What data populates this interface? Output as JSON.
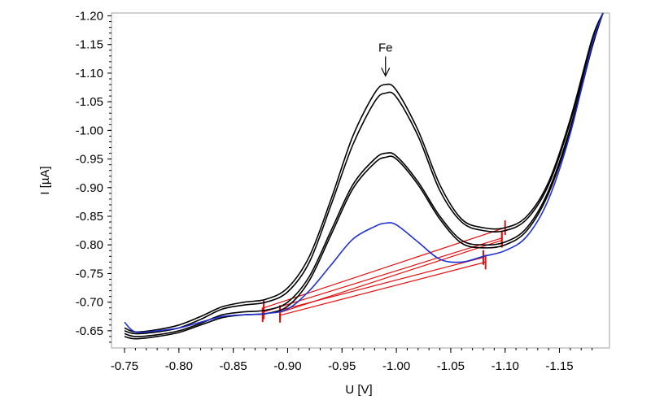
{
  "chart_data": {
    "type": "line",
    "title": "",
    "xlabel": "U [V]",
    "ylabel": "I [µA]",
    "xlim": [
      -0.738,
      -1.196
    ],
    "ylim": [
      -0.62,
      -1.205
    ],
    "x_reversed": true,
    "y_reversed": true,
    "grid": false,
    "legend": "none",
    "x_ticks": [
      -0.75,
      -0.8,
      -0.85,
      -0.9,
      -0.95,
      -1.0,
      -1.05,
      -1.1,
      -1.15
    ],
    "x_tick_labels": [
      "-0.75",
      "-0.80",
      "-0.85",
      "-0.90",
      "-0.95",
      "-1.00",
      "-1.05",
      "-1.10",
      "-1.15"
    ],
    "y_ticks": [
      -0.65,
      -0.7,
      -0.75,
      -0.8,
      -0.85,
      -0.9,
      -0.95,
      -1.0,
      -1.05,
      -1.1,
      -1.15,
      -1.2
    ],
    "y_tick_labels": [
      "-0.65",
      "-0.70",
      "-0.75",
      "-0.80",
      "-0.85",
      "-0.90",
      "-0.95",
      "-1.00",
      "-1.05",
      "-1.10",
      "-1.15",
      "-1.20"
    ],
    "annotations": [
      {
        "text": "Fe",
        "x": -0.99,
        "y": -1.095
      }
    ],
    "series": [
      {
        "color": "#000000",
        "x": [
          -0.75,
          -0.76,
          -0.78,
          -0.8,
          -0.82,
          -0.84,
          -0.86,
          -0.88,
          -0.9,
          -0.92,
          -0.94,
          -0.96,
          -0.98,
          -0.99,
          -1.0,
          -1.02,
          -1.04,
          -1.06,
          -1.08,
          -1.1,
          -1.12,
          -1.14,
          -1.16,
          -1.18,
          -1.19
        ],
        "y": [
          -0.655,
          -0.648,
          -0.652,
          -0.66,
          -0.675,
          -0.692,
          -0.7,
          -0.705,
          -0.725,
          -0.78,
          -0.88,
          -0.99,
          -1.065,
          -1.08,
          -1.07,
          -1.0,
          -0.905,
          -0.845,
          -0.83,
          -0.83,
          -0.85,
          -0.91,
          -1.02,
          -1.16,
          -1.205
        ]
      },
      {
        "color": "#000000",
        "x": [
          -0.75,
          -0.76,
          -0.78,
          -0.8,
          -0.82,
          -0.84,
          -0.86,
          -0.88,
          -0.9,
          -0.92,
          -0.94,
          -0.96,
          -0.98,
          -0.99,
          -1.0,
          -1.02,
          -1.04,
          -1.06,
          -1.08,
          -1.1,
          -1.12,
          -1.14,
          -1.16,
          -1.18,
          -1.19
        ],
        "y": [
          -0.65,
          -0.645,
          -0.648,
          -0.655,
          -0.67,
          -0.688,
          -0.695,
          -0.7,
          -0.718,
          -0.77,
          -0.87,
          -0.975,
          -1.05,
          -1.065,
          -1.058,
          -0.99,
          -0.895,
          -0.84,
          -0.825,
          -0.825,
          -0.845,
          -0.905,
          -1.015,
          -1.155,
          -1.205
        ]
      },
      {
        "color": "#000000",
        "x": [
          -0.75,
          -0.76,
          -0.78,
          -0.8,
          -0.82,
          -0.84,
          -0.86,
          -0.88,
          -0.9,
          -0.92,
          -0.94,
          -0.96,
          -0.98,
          -0.99,
          -1.0,
          -1.02,
          -1.04,
          -1.06,
          -1.08,
          -1.1,
          -1.12,
          -1.14,
          -1.16,
          -1.18,
          -1.19
        ],
        "y": [
          -0.645,
          -0.64,
          -0.643,
          -0.65,
          -0.663,
          -0.678,
          -0.683,
          -0.686,
          -0.7,
          -0.745,
          -0.825,
          -0.905,
          -0.95,
          -0.96,
          -0.955,
          -0.91,
          -0.85,
          -0.808,
          -0.8,
          -0.805,
          -0.83,
          -0.895,
          -1.005,
          -1.15,
          -1.205
        ]
      },
      {
        "color": "#000000",
        "x": [
          -0.75,
          -0.76,
          -0.78,
          -0.8,
          -0.82,
          -0.84,
          -0.86,
          -0.88,
          -0.9,
          -0.92,
          -0.94,
          -0.96,
          -0.98,
          -0.99,
          -1.0,
          -1.02,
          -1.04,
          -1.06,
          -1.08,
          -1.1,
          -1.12,
          -1.14,
          -1.16,
          -1.18,
          -1.19
        ],
        "y": [
          -0.64,
          -0.636,
          -0.64,
          -0.647,
          -0.66,
          -0.673,
          -0.678,
          -0.68,
          -0.693,
          -0.738,
          -0.818,
          -0.898,
          -0.943,
          -0.953,
          -0.95,
          -0.905,
          -0.845,
          -0.803,
          -0.795,
          -0.8,
          -0.825,
          -0.89,
          -1.0,
          -1.145,
          -1.205
        ]
      },
      {
        "color": "#1f2fd0",
        "x": [
          -0.75,
          -0.76,
          -0.78,
          -0.8,
          -0.82,
          -0.84,
          -0.86,
          -0.88,
          -0.9,
          -0.92,
          -0.94,
          -0.96,
          -0.98,
          -0.99,
          -1.0,
          -1.02,
          -1.04,
          -1.06,
          -1.08,
          -1.1,
          -1.12,
          -1.14,
          -1.16,
          -1.18,
          -1.19
        ],
        "y": [
          -0.665,
          -0.648,
          -0.65,
          -0.655,
          -0.665,
          -0.675,
          -0.678,
          -0.68,
          -0.688,
          -0.72,
          -0.765,
          -0.81,
          -0.832,
          -0.838,
          -0.835,
          -0.805,
          -0.775,
          -0.77,
          -0.78,
          -0.79,
          -0.815,
          -0.88,
          -0.995,
          -1.15,
          -1.205
        ]
      }
    ],
    "baselines": [
      {
        "color": "#e01010",
        "x": [
          -0.878,
          -1.1
        ],
        "y": [
          -0.69,
          -0.83
        ]
      },
      {
        "color": "#e01010",
        "x": [
          -0.878,
          -1.097
        ],
        "y": [
          -0.683,
          -0.812
        ]
      },
      {
        "color": "#e01010",
        "x": [
          -0.893,
          -1.097
        ],
        "y": [
          -0.682,
          -0.808
        ]
      },
      {
        "color": "#e01010",
        "x": [
          -0.877,
          -1.08
        ],
        "y": [
          -0.678,
          -0.778
        ]
      },
      {
        "color": "#e01010",
        "x": [
          -0.893,
          -1.082
        ],
        "y": [
          -0.677,
          -0.77
        ]
      }
    ]
  }
}
